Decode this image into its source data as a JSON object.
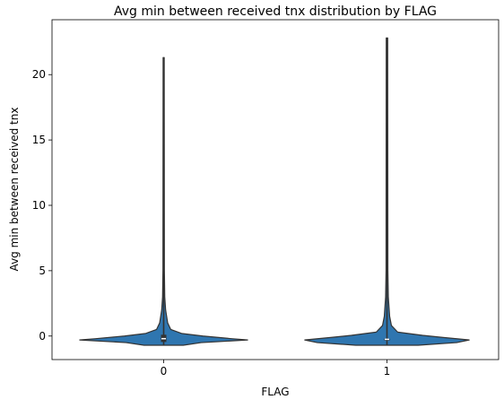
{
  "chart_data": {
    "type": "violin",
    "title": "Avg min between received tnx distribution by FLAG",
    "xlabel": "FLAG",
    "ylabel": "Avg min between received tnx",
    "categories": [
      "0",
      "1"
    ],
    "ylim": [
      -1.8,
      24.2
    ],
    "yticks": [
      0,
      5,
      10,
      15,
      20
    ],
    "grid": false,
    "legend": "none",
    "color": "#2f76b0",
    "edge_color": "#333333",
    "violins": [
      {
        "category": "0",
        "min": -0.7,
        "max": 21.3,
        "profile": [
          [
            -0.7,
            0.22
          ],
          [
            -0.5,
            0.42
          ],
          [
            -0.3,
            0.94
          ],
          [
            -0.2,
            0.76
          ],
          [
            0.0,
            0.44
          ],
          [
            0.2,
            0.2
          ],
          [
            0.5,
            0.08
          ],
          [
            1.0,
            0.045
          ],
          [
            2.0,
            0.022
          ],
          [
            3.0,
            0.012
          ],
          [
            5.0,
            0.008
          ],
          [
            21.3,
            0.006
          ]
        ],
        "box": {
          "q1": -0.45,
          "median": -0.2,
          "q3": 0.1
        }
      },
      {
        "category": "1",
        "min": -0.7,
        "max": 22.8,
        "profile": [
          [
            -0.7,
            0.35
          ],
          [
            -0.5,
            0.78
          ],
          [
            -0.3,
            0.92
          ],
          [
            -0.1,
            0.62
          ],
          [
            0.05,
            0.4
          ],
          [
            0.3,
            0.12
          ],
          [
            0.8,
            0.05
          ],
          [
            1.5,
            0.03
          ],
          [
            3.0,
            0.015
          ],
          [
            5.0,
            0.01
          ],
          [
            22.8,
            0.008
          ]
        ],
        "box": {
          "q1": -0.3,
          "median": -0.25,
          "q3": -0.2
        }
      }
    ]
  }
}
